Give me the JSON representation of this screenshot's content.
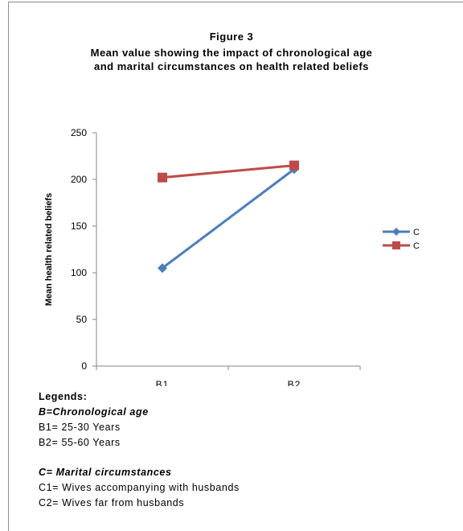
{
  "titles": {
    "figure": "Figure 3",
    "line1": "Mean value showing the impact of  chronological age",
    "line2": "and marital circumstances on  health related beliefs"
  },
  "chart_data": {
    "type": "line",
    "categories": [
      "B1",
      "B2"
    ],
    "series": [
      {
        "name": "C",
        "values": [
          105,
          211
        ],
        "color": "#4a7ebb",
        "marker": "diamond"
      },
      {
        "name": "C",
        "values": [
          202,
          215
        ],
        "color": "#be4b48",
        "marker": "square"
      }
    ],
    "ylim": [
      0,
      250
    ],
    "yticks": [
      0,
      50,
      100,
      150,
      200,
      250
    ],
    "ylabel": "Mean health related beliefs",
    "grid": false,
    "legend_position": "right"
  },
  "legends": {
    "heading": "Legends:",
    "b_heading": "B=Chronological age",
    "b1": "B1= 25-30 Years",
    "b2": "B2= 55-60 Years",
    "c_heading": "C= Marital circumstances",
    "c1": "C1= Wives accompanying with husbands",
    "c2": "C2= Wives far from husbands"
  }
}
